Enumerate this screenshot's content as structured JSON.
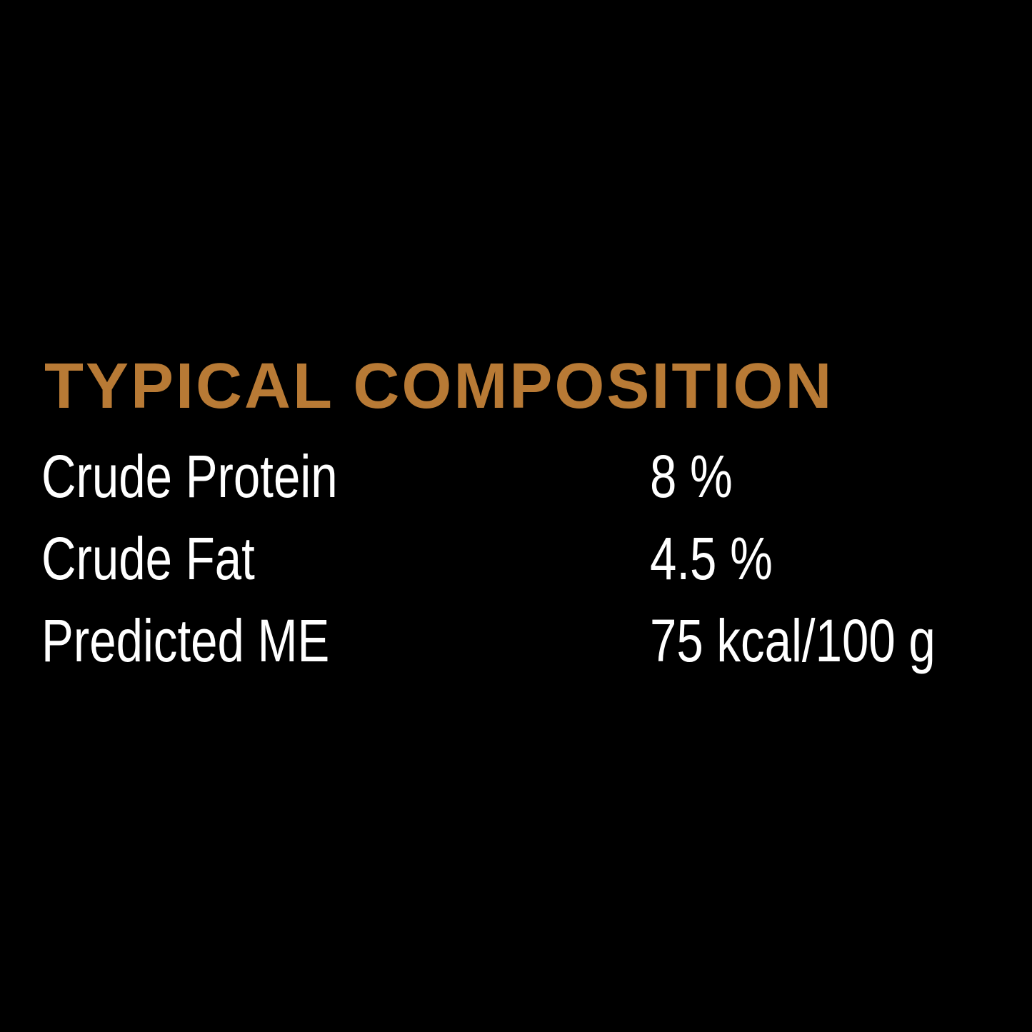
{
  "title": "TYPICAL COMPOSITION",
  "accent_color": "#B87A35",
  "rows": [
    {
      "label": "Crude Protein",
      "value": "8 %"
    },
    {
      "label": "Crude Fat",
      "value": "4.5 %"
    },
    {
      "label": "Predicted ME",
      "value": "75 kcal/100 g"
    }
  ]
}
